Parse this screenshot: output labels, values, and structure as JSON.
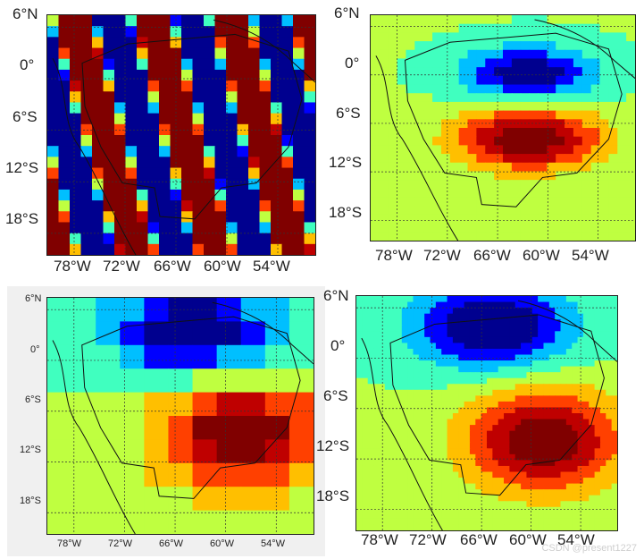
{
  "panels": [
    {
      "id": "top-left",
      "lat_ticks": [
        "6°N",
        "0°",
        "6°S",
        "12°S",
        "18°S"
      ],
      "lon_ticks": [
        "78°W",
        "72°W",
        "66°W",
        "60°W",
        "54°W"
      ]
    },
    {
      "id": "top-right",
      "lat_ticks": [
        "6°N",
        "0°",
        "6°S",
        "12°S",
        "18°S"
      ],
      "lon_ticks": [
        "78°W",
        "72°W",
        "66°W",
        "60°W",
        "54°W"
      ]
    },
    {
      "id": "bottom-left",
      "lat_ticks": [
        "6°N",
        "0°",
        "6°S",
        "12°S",
        "18°S"
      ],
      "lon_ticks": [
        "78°W",
        "72°W",
        "66°W",
        "60°W",
        "54°W"
      ]
    },
    {
      "id": "bottom-right",
      "lat_ticks": [
        "6°N",
        "0°",
        "6°S",
        "12°S",
        "18°S"
      ],
      "lon_ticks": [
        "78°W",
        "72°W",
        "66°W",
        "60°W",
        "54°W"
      ]
    }
  ],
  "watermark": "CSDN @present1227",
  "colormap": [
    "#00008f",
    "#0000ff",
    "#00bfff",
    "#40ffbf",
    "#bfff40",
    "#ffbf00",
    "#ff4000",
    "#bf0000",
    "#800000"
  ]
}
